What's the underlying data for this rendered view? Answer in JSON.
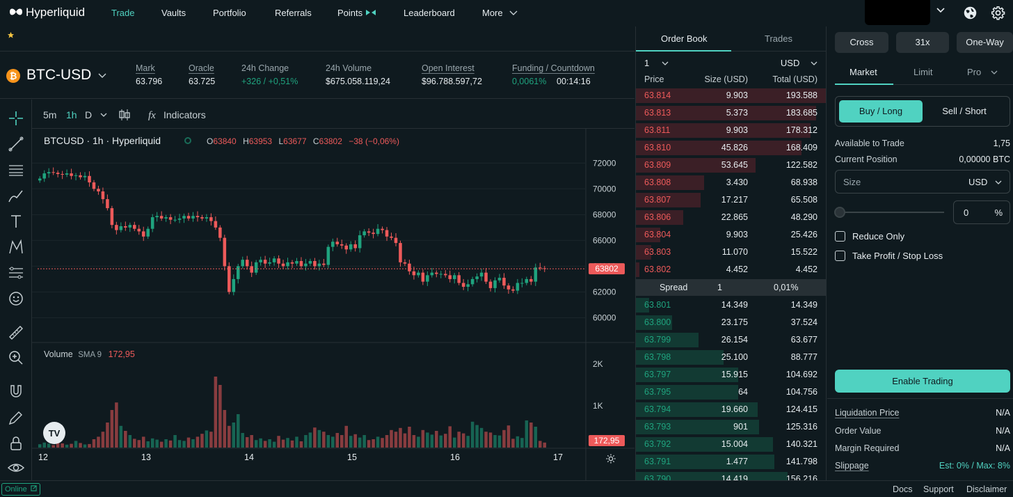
{
  "nav": {
    "logo_text": "Hyperliquid",
    "items": [
      "Trade",
      "Vaults",
      "Portfolio",
      "Referrals",
      "Points",
      "Leaderboard",
      "More"
    ],
    "accent": "#50d2c1"
  },
  "market": {
    "symbol": "BTC-USD",
    "mark_label": "Mark",
    "mark": "63.796",
    "oracle_label": "Oracle",
    "oracle": "63.725",
    "change_label": "24h Change",
    "change": "+326 / +0,51%",
    "volume_label": "24h Volume",
    "volume": "$675.058.119,24",
    "oi_label": "Open Interest",
    "oi": "$96.788.597,72",
    "funding_label": "Funding / Countdown",
    "funding": "0,0061%",
    "countdown": "00:14:16"
  },
  "chart_toolbar": {
    "intervals": [
      "5m",
      "1h",
      "D"
    ],
    "indicators_label": "Indicators"
  },
  "chart_legend": {
    "title": "BTCUSD · 1h · Hyperliquid",
    "o_label": "O",
    "o": "63840",
    "h_label": "H",
    "h": "63953",
    "l_label": "L",
    "l": "63677",
    "c_label": "C",
    "c": "63802",
    "chg": "−38 (−0,06%)",
    "volume_label": "Volume",
    "sma_label": "SMA 9",
    "sma_value": "172,95",
    "last_price": "63802",
    "last_volume": "172,95"
  },
  "chart_data": {
    "type": "candlestick",
    "price_ticks": [
      "72000",
      "70000",
      "68000",
      "66000",
      "64000",
      "62000",
      "60000"
    ],
    "volume_ticks": [
      "2K",
      "1K"
    ],
    "x_ticks": [
      "12",
      "13",
      "14",
      "15",
      "16",
      "17"
    ],
    "ylim": [
      59000,
      72500
    ],
    "close_series": [
      70800,
      71200,
      71300,
      71250,
      71150,
      71100,
      71200,
      71000,
      71050,
      70900,
      71000,
      70500,
      70000,
      69800,
      69200,
      68500,
      67200,
      66800,
      67100,
      67000,
      67200,
      66900,
      66700,
      66300,
      66900,
      67800,
      67900,
      67700,
      67800,
      67600,
      67600,
      67700,
      67900,
      67700,
      67900,
      67800,
      67700,
      67800,
      67500,
      67000,
      66200,
      64000,
      62000,
      63000,
      64000,
      64500,
      64000,
      63500,
      64300,
      64500,
      64200,
      64300,
      64600,
      64200,
      64000,
      64300,
      64200,
      64400,
      64000,
      64200,
      64400,
      64000,
      64200,
      64100,
      65500,
      65900,
      65700,
      65600,
      65300,
      65700,
      65400,
      66400,
      66700,
      66600,
      66500,
      66900,
      66800,
      66300,
      66200,
      65800,
      64300,
      64200,
      63600,
      63300,
      63500,
      62800,
      63300,
      63500,
      63400,
      63400,
      63300,
      63000,
      63300,
      62700,
      62400,
      62600,
      63000,
      63200,
      63500,
      62800,
      62300,
      62900,
      63100,
      62500,
      62200,
      62100,
      62700,
      62700,
      63000,
      62800,
      63900,
      63840,
      63802
    ],
    "volume_series": [
      80,
      120,
      95,
      60,
      140,
      100,
      70,
      90,
      160,
      110,
      75,
      85,
      200,
      260,
      380,
      600,
      900,
      1080,
      520,
      400,
      300,
      210,
      180,
      260,
      150,
      220,
      190,
      140,
      200,
      170,
      300,
      180,
      160,
      240,
      200,
      260,
      330,
      410,
      380,
      1700,
      1500,
      900,
      520,
      600,
      800,
      350,
      250,
      300,
      180,
      220,
      160,
      200,
      140,
      280,
      190,
      230,
      170,
      260,
      150,
      300,
      360,
      480,
      420,
      380,
      300,
      260,
      350,
      300,
      520,
      280,
      320,
      240,
      300,
      180,
      200,
      260,
      230,
      300,
      420,
      380,
      470,
      340,
      500,
      300,
      260,
      420,
      360,
      310,
      400,
      290,
      330,
      510,
      240,
      380,
      340,
      280,
      620,
      540,
      470,
      380,
      360,
      300,
      290,
      420,
      530,
      210,
      270,
      230,
      650,
      600,
      500,
      160,
      120
    ],
    "last_price": 63802,
    "series": [
      {
        "name": "Volume",
        "values": []
      }
    ]
  },
  "orderbook": {
    "tabs": [
      "Order Book",
      "Trades"
    ],
    "grouping": "1",
    "currency": "USD",
    "headers": [
      "Price",
      "Size (USD)",
      "Total (USD)"
    ],
    "asks": [
      {
        "price": "63.814",
        "size": "9.903",
        "total": "193.588",
        "depth": 1.0
      },
      {
        "price": "63.813",
        "size": "5.373",
        "total": "183.685",
        "depth": 0.95
      },
      {
        "price": "63.811",
        "size": "9.903",
        "total": "178.312",
        "depth": 0.92
      },
      {
        "price": "63.810",
        "size": "45.826",
        "total": "168.409",
        "depth": 0.87
      },
      {
        "price": "63.809",
        "size": "53.645",
        "total": "122.582",
        "depth": 0.63
      },
      {
        "price": "63.808",
        "size": "3.430",
        "total": "68.938",
        "depth": 0.36
      },
      {
        "price": "63.807",
        "size": "17.217",
        "total": "65.508",
        "depth": 0.34
      },
      {
        "price": "63.806",
        "size": "22.865",
        "total": "48.290",
        "depth": 0.25
      },
      {
        "price": "63.804",
        "size": "9.903",
        "total": "25.426",
        "depth": 0.13
      },
      {
        "price": "63.803",
        "size": "11.070",
        "total": "15.522",
        "depth": 0.08
      },
      {
        "price": "63.802",
        "size": "4.452",
        "total": "4.452",
        "depth": 0.02
      }
    ],
    "spread_label": "Spread",
    "spread": "1",
    "spread_pct": "0,01%",
    "bids": [
      {
        "price": "63.801",
        "size": "14.349",
        "total": "14.349",
        "depth": 0.07
      },
      {
        "price": "63.800",
        "size": "23.175",
        "total": "37.524",
        "depth": 0.19
      },
      {
        "price": "63.799",
        "size": "26.154",
        "total": "63.677",
        "depth": 0.33
      },
      {
        "price": "63.798",
        "size": "25.100",
        "total": "88.777",
        "depth": 0.46
      },
      {
        "price": "63.797",
        "size": "15.915",
        "total": "104.692",
        "depth": 0.54
      },
      {
        "price": "63.795",
        "size": "64",
        "total": "104.756",
        "depth": 0.54
      },
      {
        "price": "63.794",
        "size": "19.660",
        "total": "124.415",
        "depth": 0.64
      },
      {
        "price": "63.793",
        "size": "901",
        "total": "125.316",
        "depth": 0.65
      },
      {
        "price": "63.792",
        "size": "15.004",
        "total": "140.321",
        "depth": 0.72
      },
      {
        "price": "63.791",
        "size": "1.477",
        "total": "141.798",
        "depth": 0.73
      },
      {
        "price": "63.790",
        "size": "14.419",
        "total": "156.216",
        "depth": 0.8
      }
    ]
  },
  "trade_panel": {
    "margin_mode": "Cross",
    "leverage": "31x",
    "position_mode": "One-Way",
    "order_tabs": [
      "Market",
      "Limit",
      "Pro"
    ],
    "buy_label": "Buy / Long",
    "sell_label": "Sell / Short",
    "available_label": "Available to Trade",
    "available": "1,75",
    "position_label": "Current Position",
    "position": "0,00000 BTC",
    "size_placeholder": "Size",
    "size_currency": "USD",
    "slider_value": "0",
    "percent_sign": "%",
    "reduce_only": "Reduce Only",
    "tp_sl": "Take Profit / Stop Loss",
    "enable_label": "Enable Trading",
    "liq_label": "Liquidation Price",
    "liq": "N/A",
    "order_value_label": "Order Value",
    "order_value": "N/A",
    "margin_label": "Margin Required",
    "margin": "N/A",
    "slippage_label": "Slippage",
    "slippage": "Est: 0% / Max: 8%"
  },
  "footer": {
    "status": "Online",
    "links": [
      "Docs",
      "Support",
      "Disclaimer"
    ]
  },
  "colors": {
    "up": "#1fa37e",
    "down": "#ed5a5a",
    "accent": "#50d2c1",
    "bg": "#0f1a1f",
    "border": "#273035"
  }
}
